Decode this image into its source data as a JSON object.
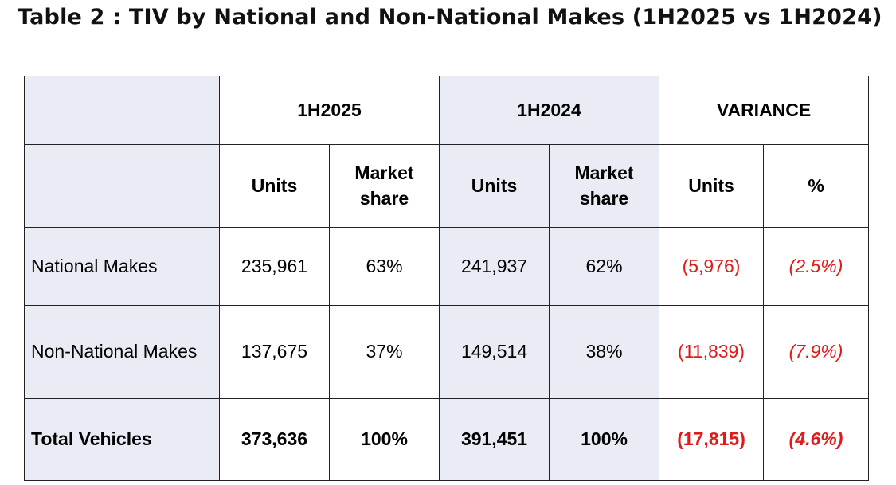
{
  "title": "Table 2 : TIV by National and Non-National Makes (1H2025 vs 1H2024)",
  "header": {
    "periods": [
      "1H2025",
      "1H2024"
    ],
    "variance": "VARIANCE",
    "units": "Units",
    "market_share_line1": "Market",
    "market_share_line2": "share",
    "percent": "%"
  },
  "rows": [
    {
      "label": "National Makes",
      "units_2025": "235,961",
      "share_2025": "63%",
      "units_2024": "241,937",
      "share_2024": "62%",
      "var_units": "(5,976)",
      "var_pct": "(2.5%)"
    },
    {
      "label": "Non-National Makes",
      "units_2025": "137,675",
      "share_2025": "37%",
      "units_2024": "149,514",
      "share_2024": "38%",
      "var_units": "(11,839)",
      "var_pct": "(7.9%)"
    },
    {
      "label": "Total Vehicles",
      "units_2025": "373,636",
      "share_2025": "100%",
      "units_2024": "391,451",
      "share_2024": "100%",
      "var_units": "(17,815)",
      "var_pct": "(4.6%)"
    }
  ],
  "colors": {
    "header_shade": "#e9ecf5",
    "negative": "#e01b1b"
  }
}
